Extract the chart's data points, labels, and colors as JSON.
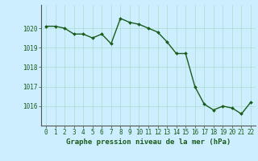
{
  "x": [
    0,
    1,
    2,
    3,
    4,
    5,
    6,
    7,
    8,
    9,
    10,
    11,
    12,
    13,
    14,
    15,
    16,
    17,
    18,
    19,
    20,
    21,
    22
  ],
  "y": [
    1020.1,
    1020.1,
    1020.0,
    1019.7,
    1019.7,
    1019.5,
    1019.7,
    1019.2,
    1020.5,
    1020.3,
    1020.2,
    1020.0,
    1019.8,
    1019.3,
    1018.7,
    1018.7,
    1017.0,
    1016.1,
    1015.8,
    1016.0,
    1015.9,
    1015.6,
    1016.2
  ],
  "line_color": "#1a5c1a",
  "marker_color": "#1a5c1a",
  "bg_color": "#cceeff",
  "grid_color": "#aaddcc",
  "title": "Graphe pression niveau de la mer (hPa)",
  "ylabel_ticks": [
    1016,
    1017,
    1018,
    1019,
    1020
  ],
  "xlim": [
    -0.5,
    22.5
  ],
  "ylim": [
    1015.0,
    1021.2
  ],
  "title_color": "#1a5c1a",
  "title_fontsize": 6.5,
  "tick_fontsize": 5.5,
  "spine_color": "#888888"
}
